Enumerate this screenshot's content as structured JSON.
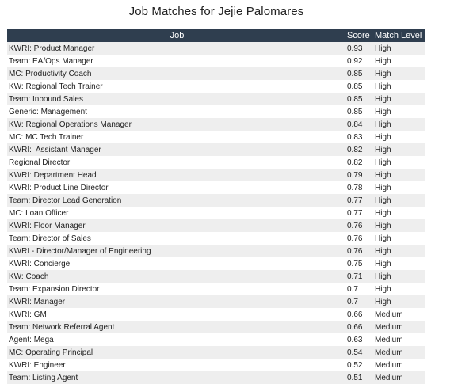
{
  "title": "Job Matches for Jejie Palomares",
  "table": {
    "columns": [
      "Job",
      "Score",
      "Match Level"
    ],
    "rows": [
      {
        "job": "KWRI: Product Manager",
        "score": "0.93",
        "level": "High"
      },
      {
        "job": "Team: EA/Ops Manager",
        "score": "0.92",
        "level": "High"
      },
      {
        "job": "MC: Productivity Coach",
        "score": "0.85",
        "level": "High"
      },
      {
        "job": "KW: Regional Tech Trainer",
        "score": "0.85",
        "level": "High"
      },
      {
        "job": "Team: Inbound Sales",
        "score": "0.85",
        "level": "High"
      },
      {
        "job": "Generic: Management",
        "score": "0.85",
        "level": "High"
      },
      {
        "job": "KW: Regional Operations Manager",
        "score": "0.84",
        "level": "High"
      },
      {
        "job": "MC: MC Tech Trainer",
        "score": "0.83",
        "level": "High"
      },
      {
        "job": "KWRI:  Assistant Manager",
        "score": "0.82",
        "level": "High"
      },
      {
        "job": "Regional Director",
        "score": "0.82",
        "level": "High"
      },
      {
        "job": "KWRI: Department Head",
        "score": "0.79",
        "level": "High"
      },
      {
        "job": "KWRI: Product Line Director",
        "score": "0.78",
        "level": "High"
      },
      {
        "job": "Team: Director Lead Generation",
        "score": "0.77",
        "level": "High"
      },
      {
        "job": "MC: Loan Officer",
        "score": "0.77",
        "level": "High"
      },
      {
        "job": "KWRI: Floor Manager",
        "score": "0.76",
        "level": "High"
      },
      {
        "job": "Team: Director of Sales",
        "score": "0.76",
        "level": "High"
      },
      {
        "job": "KWRI - Director/Manager of Engineering",
        "score": "0.76",
        "level": "High"
      },
      {
        "job": "KWRI: Concierge",
        "score": "0.75",
        "level": "High"
      },
      {
        "job": "KW: Coach",
        "score": "0.71",
        "level": "High"
      },
      {
        "job": "Team: Expansion Director",
        "score": "0.7",
        "level": "High"
      },
      {
        "job": "KWRI: Manager",
        "score": "0.7",
        "level": "High"
      },
      {
        "job": "KWRI: GM",
        "score": "0.66",
        "level": "Medium"
      },
      {
        "job": "Team: Network Referral Agent",
        "score": "0.66",
        "level": "Medium"
      },
      {
        "job": "Agent: Mega",
        "score": "0.63",
        "level": "Medium"
      },
      {
        "job": "MC: Operating Principal",
        "score": "0.54",
        "level": "Medium"
      },
      {
        "job": "KWRI: Engineer",
        "score": "0.52",
        "level": "Medium"
      },
      {
        "job": "Team: Listing Agent",
        "score": "0.51",
        "level": "Medium"
      }
    ]
  },
  "colors": {
    "header_bg": "#2f3e4f",
    "header_text": "#ffffff",
    "stripe": "#eeeeee"
  }
}
